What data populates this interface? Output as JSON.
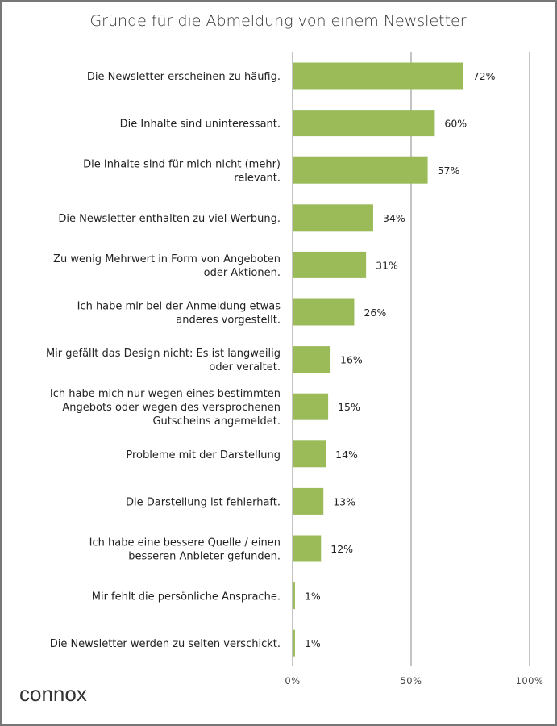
{
  "chart_data": {
    "type": "bar",
    "orientation": "horizontal",
    "title": "Gründe für die Abmeldung von einem Newsletter",
    "categories": [
      [
        "Die Newsletter erscheinen zu häufig."
      ],
      [
        "Die Inhalte sind uninteressant."
      ],
      [
        "Die Inhalte sind für mich nicht (mehr)",
        "relevant."
      ],
      [
        "Die Newsletter enthalten zu viel Werbung."
      ],
      [
        "Zu wenig Mehrwert in Form von Angeboten",
        "oder Aktionen."
      ],
      [
        "Ich habe mir bei der Anmeldung etwas",
        "anderes vorgestellt."
      ],
      [
        "Mir gefällt das Design nicht: Es ist langweilig",
        "oder veraltet."
      ],
      [
        "Ich habe mich nur wegen eines bestimmten",
        "Angebots oder wegen des versprochenen",
        "Gutscheins angemeldet."
      ],
      [
        "Probleme mit der Darstellung"
      ],
      [
        "Die Darstellung ist fehlerhaft."
      ],
      [
        "Ich habe eine bessere Quelle / einen",
        "besseren Anbieter gefunden."
      ],
      [
        "Mir fehlt die persönliche Ansprache."
      ],
      [
        "Die Newsletter werden zu selten verschickt."
      ]
    ],
    "values": [
      72,
      60,
      57,
      34,
      31,
      26,
      16,
      15,
      14,
      13,
      12,
      1,
      1
    ],
    "data_labels": [
      "72%",
      "60%",
      "57%",
      "34%",
      "31%",
      "26%",
      "16%",
      "15%",
      "14%",
      "13%",
      "12%",
      "1%",
      "1%"
    ],
    "xlim": [
      0,
      100
    ],
    "xticks": [
      0,
      50,
      100
    ],
    "xtick_labels": [
      "0%",
      "50%",
      "100%"
    ],
    "grid": true,
    "legend": "none",
    "bar_color": "#9bbb59",
    "grid_color": "#888888"
  },
  "branding": {
    "logo": "connox"
  }
}
